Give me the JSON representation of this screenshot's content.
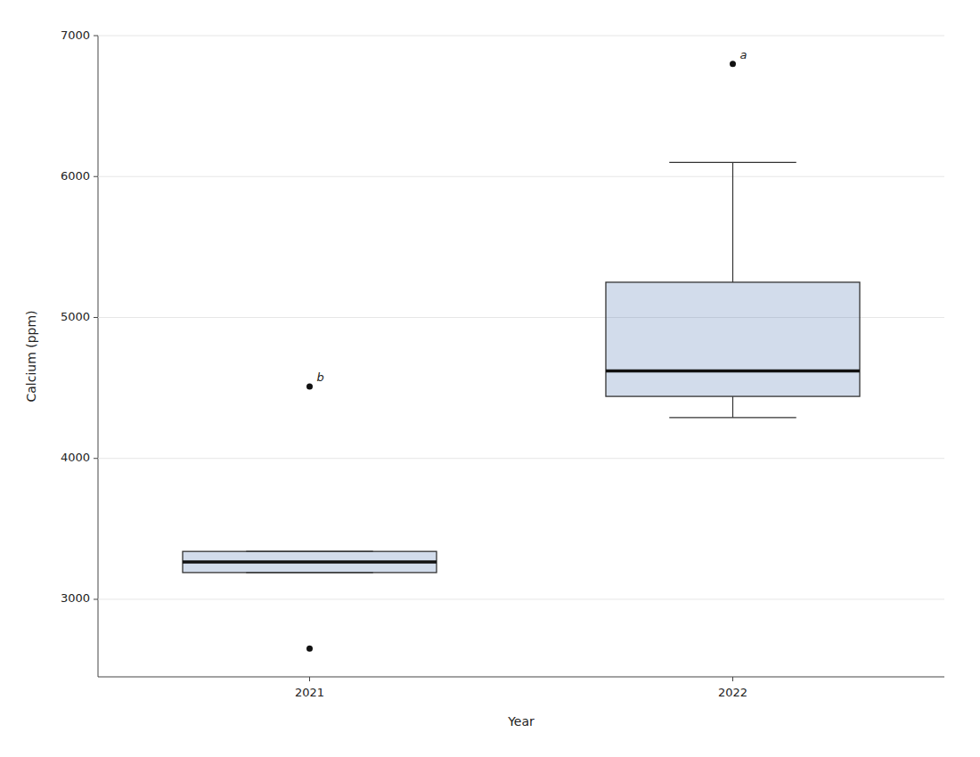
{
  "chart_data": {
    "type": "box",
    "xlabel": "Year",
    "ylabel": "Calcium (ppm)",
    "categories": [
      "2021",
      "2022"
    ],
    "values": [
      {
        "q1": 3190,
        "median": 3265,
        "q3": 3340,
        "whisker_low": 3190,
        "whisker_high": 3340,
        "outliers": [
          2650,
          4510
        ],
        "outlier_labels": [
          null,
          "b"
        ]
      },
      {
        "q1": 4440,
        "median": 4620,
        "q3": 5250,
        "whisker_low": 4290,
        "whisker_high": 6100,
        "outliers": [
          6800
        ],
        "outlier_labels": [
          "a"
        ]
      }
    ],
    "ylim": [
      2450,
      7000
    ],
    "yticks": [
      3000,
      4000,
      5000,
      6000,
      7000
    ]
  }
}
